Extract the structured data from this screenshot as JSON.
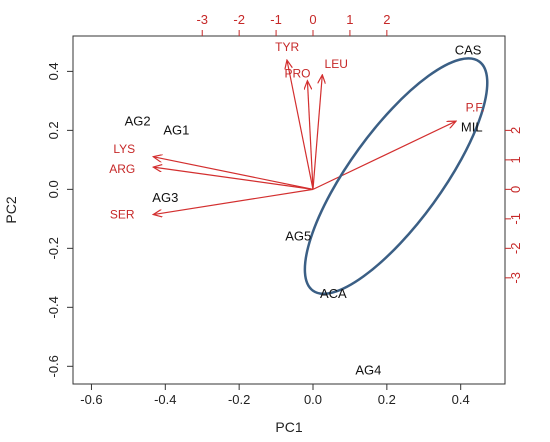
{
  "chart_data": {
    "type": "biplot",
    "xlabel": "PC1",
    "ylabel": "PC2",
    "xlim": [
      -0.65,
      0.52
    ],
    "ylim": [
      -0.66,
      0.52
    ],
    "x_ticks": [
      -0.6,
      -0.4,
      -0.2,
      0.0,
      0.2,
      0.4
    ],
    "x_tick_labels": [
      "-0.6",
      "-0.4",
      "-0.2",
      "0.0",
      "0.2",
      "0.4"
    ],
    "y_ticks": [
      -0.6,
      -0.4,
      -0.2,
      0.0,
      0.2,
      0.4
    ],
    "y_tick_labels": [
      "-0.6",
      "-0.4",
      "-0.2",
      "0.0",
      "0.2",
      "0.4"
    ],
    "top_axis": {
      "ticks": [
        -3,
        -2,
        -1,
        0,
        1,
        2
      ],
      "tick_labels": [
        "-3",
        "-2",
        "-1",
        "0",
        "1",
        "2"
      ],
      "color": "#c62828"
    },
    "right_axis": {
      "ticks": [
        -3,
        -2,
        -1,
        0,
        1,
        2
      ],
      "tick_labels": [
        "-3",
        "-2",
        "-1",
        "0",
        "1",
        "2"
      ],
      "color": "#c62828"
    },
    "scores": [
      {
        "label": "CAS",
        "x": 0.42,
        "y": 0.47
      },
      {
        "label": "MIL",
        "x": 0.43,
        "y": 0.21
      },
      {
        "label": "AG2",
        "x": -0.475,
        "y": 0.23
      },
      {
        "label": "AG1",
        "x": -0.37,
        "y": 0.2
      },
      {
        "label": "AG3",
        "x": -0.4,
        "y": -0.03
      },
      {
        "label": "AG5",
        "x": -0.04,
        "y": -0.16
      },
      {
        "label": "ACA",
        "x": 0.055,
        "y": -0.355
      },
      {
        "label": "AG4",
        "x": 0.15,
        "y": -0.615
      }
    ],
    "loadings": [
      {
        "label": "TYR",
        "x": -0.07,
        "y": 0.435
      },
      {
        "label": "LEU",
        "x": 0.025,
        "y": 0.385
      },
      {
        "label": "PRO",
        "x": -0.015,
        "y": 0.365
      },
      {
        "label": "P.F.",
        "x": 0.385,
        "y": 0.23
      },
      {
        "label": "LYS",
        "x": -0.43,
        "y": 0.11
      },
      {
        "label": "ARG",
        "x": -0.43,
        "y": 0.075
      },
      {
        "label": "SER",
        "x": -0.43,
        "y": -0.085
      }
    ],
    "ellipse": {
      "cx": 0.225,
      "cy": 0.045,
      "rx": 0.125,
      "ry": 0.48,
      "rotation_deg": 36,
      "color": "#3b5f85"
    },
    "arrow_color": "#d32f2f",
    "grid": false,
    "legend": "none"
  }
}
